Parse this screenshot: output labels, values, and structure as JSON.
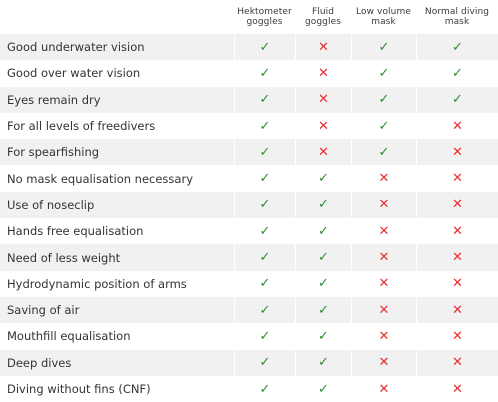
{
  "columns": [
    "",
    "Hektometer goggles",
    "Fluid goggles",
    "Low volume mask",
    "Normal diving mask"
  ],
  "symbols": {
    "yes": "✓",
    "no": "✕"
  },
  "colors": {
    "yes": "#2e8b2e",
    "no": "#e53030",
    "stripe": "#f1f1f1"
  },
  "rows": [
    {
      "label": "Good underwater vision",
      "values": [
        "yes",
        "no",
        "yes",
        "yes"
      ]
    },
    {
      "label": "Good over water vision",
      "values": [
        "yes",
        "no",
        "yes",
        "yes"
      ]
    },
    {
      "label": "Eyes remain dry",
      "values": [
        "yes",
        "no",
        "yes",
        "yes"
      ]
    },
    {
      "label": "For all levels of freedivers",
      "values": [
        "yes",
        "no",
        "yes",
        "no"
      ]
    },
    {
      "label": "For spearfishing",
      "values": [
        "yes",
        "no",
        "yes",
        "no"
      ]
    },
    {
      "label": "No mask equalisation necessary",
      "values": [
        "yes",
        "yes",
        "no",
        "no"
      ]
    },
    {
      "label": "Use of noseclip",
      "values": [
        "yes",
        "yes",
        "no",
        "no"
      ]
    },
    {
      "label": "Hands free equalisation",
      "values": [
        "yes",
        "yes",
        "no",
        "no"
      ]
    },
    {
      "label": "Need of less weight",
      "values": [
        "yes",
        "yes",
        "no",
        "no"
      ]
    },
    {
      "label": "Hydrodynamic position of arms",
      "values": [
        "yes",
        "yes",
        "no",
        "no"
      ]
    },
    {
      "label": "Saving of air",
      "values": [
        "yes",
        "yes",
        "no",
        "no"
      ]
    },
    {
      "label": "Mouthfill equalisation",
      "values": [
        "yes",
        "yes",
        "no",
        "no"
      ]
    },
    {
      "label": "Deep dives",
      "values": [
        "yes",
        "yes",
        "no",
        "no"
      ]
    },
    {
      "label": "Diving without fins (CNF)",
      "values": [
        "yes",
        "yes",
        "no",
        "no"
      ]
    }
  ]
}
